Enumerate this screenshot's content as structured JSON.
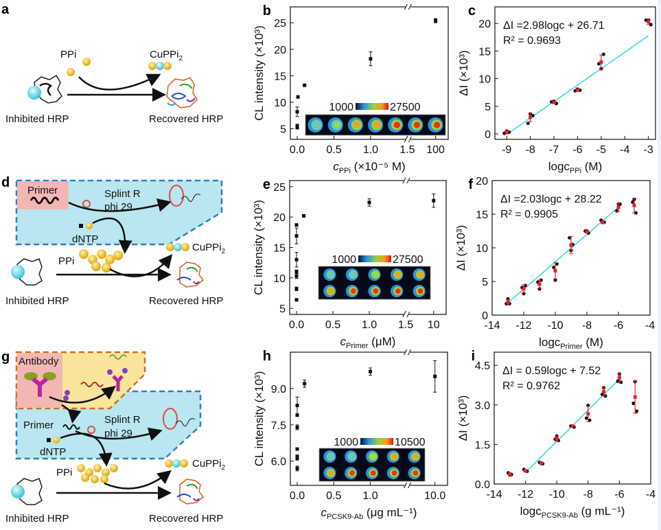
{
  "panels": {
    "a": {
      "label": "a",
      "ppi": "PPi",
      "product": "CuPPi",
      "product_sub": "2",
      "inhibited": "Inhibited HRP",
      "recovered": "Recovered HRP"
    },
    "d": {
      "label": "d",
      "primer": "Primer",
      "splint": "Splint R",
      "phi": "phi 29",
      "dntp": "dNTP",
      "ppi": "PPi",
      "product": "CuPPi",
      "product_sub": "2",
      "inhibited": "Inhibited HRP",
      "recovered": "Recovered HRP"
    },
    "g": {
      "label": "g",
      "antibody": "Antibody",
      "primer": "Primer",
      "splint": "Splint R",
      "phi": "phi 29",
      "dntp": "dNTP",
      "ppi": "PPi",
      "product": "CuPPi",
      "product_sub": "2",
      "inhibited": "Inhibited HRP",
      "recovered": "Recovered HRP"
    }
  },
  "colors": {
    "cyan_fit": "#22d3e6",
    "red_err": "#e8202a",
    "blue_box": "#b9e6f0",
    "blue_dash": "#2f7fc4",
    "yellow_box": "#f8e59a",
    "orange_dash": "#d66a1e",
    "pink_box": "#f2b7b5"
  },
  "chart_data": [
    {
      "id": "b",
      "type": "scatter",
      "panel_label": "b",
      "ylabel": "CL intensity (×10³)",
      "xlabel_main": "c",
      "xlabel_sub": "PPi",
      "xlabel_unit": " (×10⁻⁵ M)",
      "xticks": [
        "0.0",
        "0.5",
        "1.0",
        "1.5",
        "100"
      ],
      "yticks": [
        5,
        10,
        15,
        20,
        25
      ],
      "ylim": [
        3,
        28
      ],
      "axis_break": true,
      "colorbar": {
        "min": "1000",
        "max": "27500"
      },
      "inset_rows": 1,
      "inset_cols": 7,
      "points": [
        {
          "x": 0.0,
          "y": 5.2,
          "err": 0.2
        },
        {
          "x": 0.0,
          "y": 5.6,
          "err": 0.2
        },
        {
          "x": 0.0,
          "y": 8.2,
          "err": 0.9
        },
        {
          "x": 0.01,
          "y": 11.0,
          "err": 0.2
        },
        {
          "x": 0.1,
          "y": 13.2,
          "err": 0.2
        },
        {
          "x": 1.0,
          "y": 18.2,
          "err": 1.3
        },
        {
          "x": 100,
          "y": 25.4,
          "err": 0.4
        }
      ]
    },
    {
      "id": "c",
      "type": "scatter",
      "panel_label": "c",
      "ylabel": "ΔI (×10³)",
      "xlabel_main": "logc",
      "xlabel_sub": "PPi",
      "xlabel_unit": " (M)",
      "xlim": [
        -9.5,
        -2.7
      ],
      "ylim": [
        -1,
        23
      ],
      "xticks": [
        -9,
        -8,
        -7,
        -6,
        -5,
        -4,
        -3
      ],
      "yticks": [
        0,
        5,
        10,
        15,
        20
      ],
      "equation": "ΔI =2.98logc + 26.71",
      "r2": "R² = 0.9693",
      "fit": {
        "slope": 2.98,
        "intercept": 26.71,
        "xrange": [
          -9,
          -3
        ]
      },
      "means": [
        {
          "x": -9,
          "y": 0.3,
          "err": 0.3
        },
        {
          "x": -8,
          "y": 3.0,
          "err": 0.8
        },
        {
          "x": -7,
          "y": 5.7,
          "err": 0.2
        },
        {
          "x": -6,
          "y": 7.9,
          "err": 0.2
        },
        {
          "x": -5,
          "y": 13.0,
          "err": 1.3
        },
        {
          "x": -3,
          "y": 20.3,
          "err": 0.5
        }
      ],
      "replicates": [
        [
          -9.1,
          0.1
        ],
        [
          -9.0,
          0.5
        ],
        [
          -8.9,
          0.3
        ],
        [
          -8.1,
          1.9
        ],
        [
          -8.0,
          3.6
        ],
        [
          -7.9,
          3.3
        ],
        [
          -7.1,
          5.8
        ],
        [
          -7.0,
          5.9
        ],
        [
          -6.9,
          5.5
        ],
        [
          -6.1,
          7.8
        ],
        [
          -6.0,
          8.1
        ],
        [
          -5.9,
          7.9
        ],
        [
          -5.1,
          12.7
        ],
        [
          -5.0,
          11.8
        ],
        [
          -4.9,
          14.4
        ],
        [
          -3.1,
          20.6
        ],
        [
          -3.0,
          20.6
        ],
        [
          -2.9,
          19.8
        ]
      ]
    },
    {
      "id": "e",
      "type": "scatter",
      "panel_label": "e",
      "ylabel": "CL intensity (×10³)",
      "xlabel_main": "c",
      "xlabel_sub": "Primer",
      "xlabel_unit": " (μM)",
      "xticks": [
        "0.0",
        "0.5",
        "1.0",
        "1.5",
        "10"
      ],
      "yticks": [
        5,
        10,
        15,
        20,
        25
      ],
      "ylim": [
        4,
        26
      ],
      "axis_break": true,
      "colorbar": {
        "min": "1000",
        "max": "27500"
      },
      "inset_rows": 2,
      "inset_cols": 5,
      "points": [
        {
          "x": 0.0,
          "y": 6.4,
          "err": 0.2
        },
        {
          "x": 0.0,
          "y": 8.2,
          "err": 0.3
        },
        {
          "x": 0.0,
          "y": 10.3,
          "err": 0.4
        },
        {
          "x": 0.0,
          "y": 11.0,
          "err": 0.3
        },
        {
          "x": 0.0,
          "y": 13.0,
          "err": 1.2
        },
        {
          "x": 0.0,
          "y": 16.9,
          "err": 1.3
        },
        {
          "x": 0.0,
          "y": 18.7,
          "err": 0.2
        },
        {
          "x": 0.1,
          "y": 20.2,
          "err": 0.2
        },
        {
          "x": 1.0,
          "y": 22.4,
          "err": 0.6
        },
        {
          "x": 10,
          "y": 22.7,
          "err": 1.1
        }
      ]
    },
    {
      "id": "f",
      "type": "scatter",
      "panel_label": "f",
      "ylabel": "ΔI (×10³)",
      "xlabel_main": "logc",
      "xlabel_sub": "Primer",
      "xlabel_unit": " (M)",
      "xlim": [
        -14,
        -4
      ],
      "ylim": [
        0,
        20
      ],
      "xticks": [
        -14,
        -12,
        -10,
        -8,
        -6,
        -4
      ],
      "yticks": [
        0,
        5,
        10,
        15,
        20
      ],
      "equation": "ΔI =2.03logc + 28.22",
      "r2": "R² = 0.9905",
      "fit": {
        "slope": 2.03,
        "intercept": 28.22,
        "xrange": [
          -13,
          -6
        ]
      },
      "means": [
        {
          "x": -13,
          "y": 1.9,
          "err": 0.4
        },
        {
          "x": -12,
          "y": 3.9,
          "err": 0.6
        },
        {
          "x": -11,
          "y": 4.6,
          "err": 0.6
        },
        {
          "x": -10,
          "y": 6.6,
          "err": 1.2
        },
        {
          "x": -9,
          "y": 10.4,
          "err": 1.3
        },
        {
          "x": -8,
          "y": 12.4,
          "err": 0.2
        },
        {
          "x": -7,
          "y": 13.8,
          "err": 0.2
        },
        {
          "x": -6,
          "y": 16.0,
          "err": 0.6
        },
        {
          "x": -5,
          "y": 16.3,
          "err": 1.1
        }
      ],
      "replicates": [
        [
          -13.1,
          1.7
        ],
        [
          -13.0,
          2.4
        ],
        [
          -12.9,
          1.7
        ],
        [
          -12.1,
          4.1
        ],
        [
          -12.0,
          3.2
        ],
        [
          -11.9,
          4.4
        ],
        [
          -11.1,
          4.9
        ],
        [
          -11.0,
          3.9
        ],
        [
          -10.9,
          5.2
        ],
        [
          -10.1,
          7.1
        ],
        [
          -10.0,
          5.2
        ],
        [
          -9.9,
          7.6
        ],
        [
          -9.1,
          11.5
        ],
        [
          -9.0,
          9.6
        ],
        [
          -8.9,
          10.5
        ],
        [
          -8.1,
          12.5
        ],
        [
          -8.0,
          12.5
        ],
        [
          -7.9,
          12.2
        ],
        [
          -7.1,
          14.1
        ],
        [
          -7.0,
          13.8
        ],
        [
          -6.9,
          13.8
        ],
        [
          -6.1,
          15.5
        ],
        [
          -6.0,
          16.5
        ],
        [
          -5.9,
          16.5
        ],
        [
          -5.1,
          16.8
        ],
        [
          -5.0,
          17.2
        ],
        [
          -4.9,
          15.2
        ]
      ]
    },
    {
      "id": "h",
      "type": "scatter",
      "panel_label": "h",
      "ylabel": "CL intensity (×10³)",
      "xlabel_main": "c",
      "xlabel_sub": "PCSK9-Ab",
      "xlabel_unit": " (μg mL⁻¹)",
      "xticks": [
        "0.0",
        "0.5",
        "1.0",
        "10.0"
      ],
      "yticks": [
        6.0,
        7.5,
        9.0
      ],
      "ylim": [
        5.0,
        10.5
      ],
      "axis_break": true,
      "colorbar": {
        "min": "1000",
        "max": "10500"
      },
      "inset_rows": 2,
      "inset_cols": 5,
      "points": [
        {
          "x": 0.0,
          "y": 5.7,
          "err": 0.1
        },
        {
          "x": 0.0,
          "y": 6.1,
          "err": 0.05
        },
        {
          "x": 0.0,
          "y": 6.2,
          "err": 0.05
        },
        {
          "x": 0.0,
          "y": 6.5,
          "err": 0.05
        },
        {
          "x": 0.0,
          "y": 7.4,
          "err": 0.1
        },
        {
          "x": 0.0,
          "y": 7.9,
          "err": 0.05
        },
        {
          "x": 0.0,
          "y": 8.3,
          "err": 0.35
        },
        {
          "x": 0.1,
          "y": 9.2,
          "err": 0.15
        },
        {
          "x": 1.0,
          "y": 9.7,
          "err": 0.15
        },
        {
          "x": 10.0,
          "y": 9.5,
          "err": 0.65
        }
      ]
    },
    {
      "id": "i",
      "type": "scatter",
      "panel_label": "i",
      "ylabel": "ΔI (×10³)",
      "xlabel_main": "logc",
      "xlabel_sub": "PCSK9-Ab",
      "xlabel_unit": " (g mL⁻¹)",
      "xlim": [
        -14,
        -4
      ],
      "ylim": [
        0,
        5.0
      ],
      "xticks": [
        -14,
        -12,
        -10,
        -8,
        -6,
        -4
      ],
      "yticks": [
        0.0,
        1.5,
        3.0,
        4.5
      ],
      "equation": "ΔI = 0.59logc + 7.52",
      "r2": "R² = 0.9762",
      "fit": {
        "slope": 0.59,
        "intercept": 7.52,
        "xrange": [
          -12,
          -6
        ]
      },
      "means": [
        {
          "x": -13,
          "y": 0.38,
          "err": 0.04
        },
        {
          "x": -12,
          "y": 0.5,
          "err": 0.04
        },
        {
          "x": -11,
          "y": 0.8,
          "err": 0.03
        },
        {
          "x": -10,
          "y": 1.72,
          "err": 0.1
        },
        {
          "x": -9,
          "y": 2.2,
          "err": 0.03
        },
        {
          "x": -8,
          "y": 2.66,
          "err": 0.3
        },
        {
          "x": -7,
          "y": 3.5,
          "err": 0.15
        },
        {
          "x": -6,
          "y": 4.03,
          "err": 0.15
        },
        {
          "x": -5,
          "y": 3.3,
          "err": 0.62
        }
      ],
      "replicates": [
        [
          -13.1,
          0.42
        ],
        [
          -13.0,
          0.35
        ],
        [
          -12.9,
          0.36
        ],
        [
          -12.1,
          0.55
        ],
        [
          -12.0,
          0.5
        ],
        [
          -11.9,
          0.48
        ],
        [
          -11.1,
          0.82
        ],
        [
          -11.0,
          0.78
        ],
        [
          -10.9,
          0.77
        ],
        [
          -10.1,
          1.7
        ],
        [
          -10.0,
          1.82
        ],
        [
          -9.9,
          1.65
        ],
        [
          -9.1,
          2.2
        ],
        [
          -9.0,
          2.2
        ],
        [
          -8.9,
          2.16
        ],
        [
          -8.1,
          2.5
        ],
        [
          -8.0,
          2.98
        ],
        [
          -7.9,
          2.42
        ],
        [
          -7.1,
          3.4
        ],
        [
          -7.0,
          3.65
        ],
        [
          -6.9,
          3.34
        ],
        [
          -6.1,
          3.9
        ],
        [
          -6.0,
          4.17
        ],
        [
          -5.9,
          3.86
        ],
        [
          -5.1,
          3.06
        ],
        [
          -5.0,
          3.88
        ],
        [
          -4.9,
          2.76
        ]
      ]
    }
  ]
}
